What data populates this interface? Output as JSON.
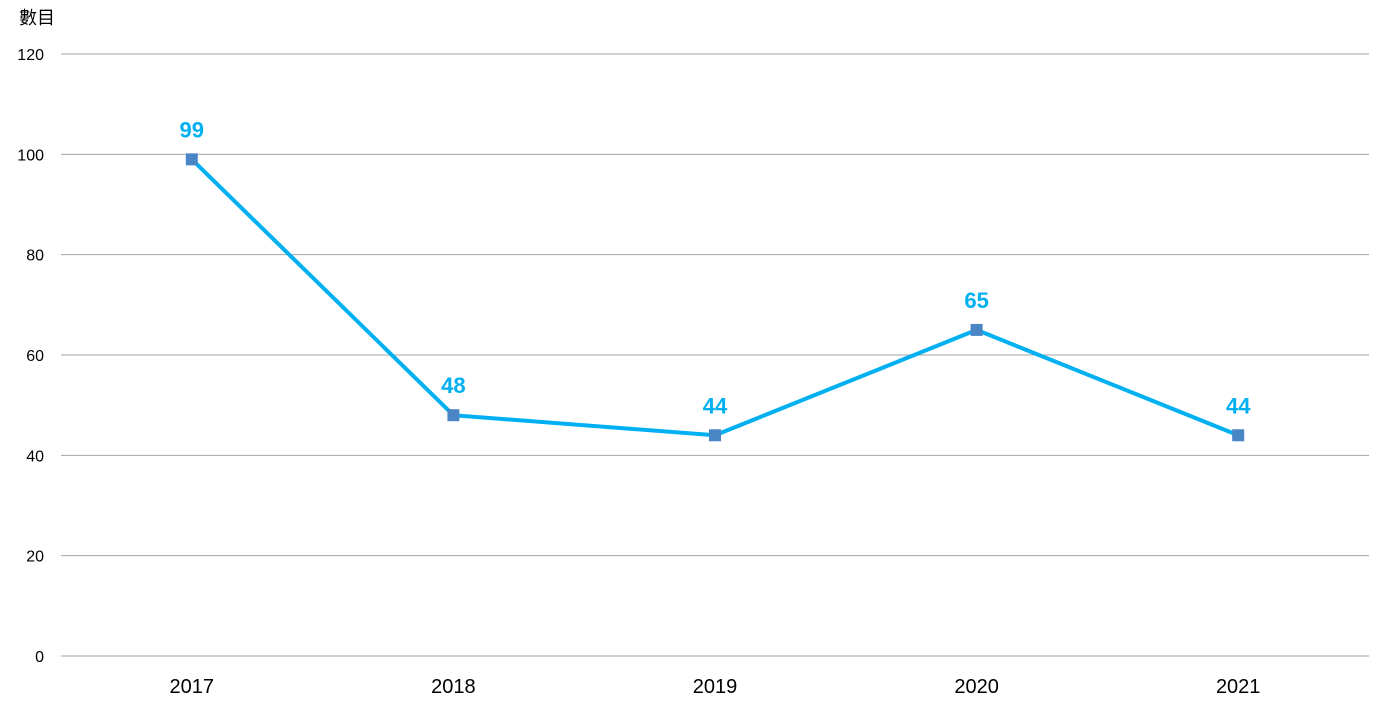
{
  "chart_data": {
    "type": "line",
    "title": "",
    "xlabel": "",
    "ylabel": "數目",
    "categories": [
      "2017",
      "2018",
      "2019",
      "2020",
      "2021"
    ],
    "series": [
      {
        "values": [
          99,
          48,
          44,
          65,
          44
        ]
      }
    ],
    "ylim": [
      0,
      120
    ],
    "yticks": [
      0,
      20,
      40,
      60,
      80,
      100,
      120
    ],
    "grid": true,
    "legend": "none",
    "data_labels": true,
    "colors": {
      "line": "#00b0f0",
      "marker": "#4a86c6",
      "data_label": "#00b0f0",
      "gridline": "#a6a6a6"
    }
  }
}
